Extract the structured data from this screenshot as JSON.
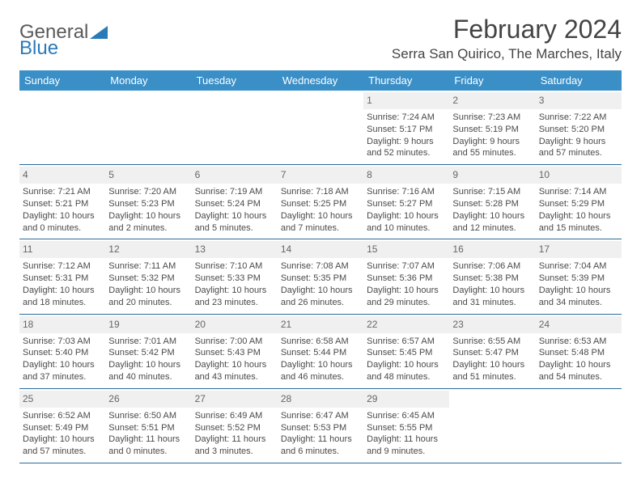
{
  "brand": {
    "part1": "General",
    "part2": "Blue"
  },
  "title": "February 2024",
  "location": "Serra San Quirico, The Marches, Italy",
  "colors": {
    "header_bg": "#3a8fc7",
    "header_text": "#ffffff",
    "rule": "#2a6a9a",
    "daynum_bg": "#f0f0f0",
    "text": "#4a4a4a",
    "brand_gray": "#5a5a5a",
    "brand_blue": "#2a7ab8",
    "page_bg": "#ffffff"
  },
  "dow": [
    "Sunday",
    "Monday",
    "Tuesday",
    "Wednesday",
    "Thursday",
    "Friday",
    "Saturday"
  ],
  "weeks": [
    [
      null,
      null,
      null,
      null,
      {
        "n": "1",
        "sr": "Sunrise: 7:24 AM",
        "ss": "Sunset: 5:17 PM",
        "d1": "Daylight: 9 hours",
        "d2": "and 52 minutes."
      },
      {
        "n": "2",
        "sr": "Sunrise: 7:23 AM",
        "ss": "Sunset: 5:19 PM",
        "d1": "Daylight: 9 hours",
        "d2": "and 55 minutes."
      },
      {
        "n": "3",
        "sr": "Sunrise: 7:22 AM",
        "ss": "Sunset: 5:20 PM",
        "d1": "Daylight: 9 hours",
        "d2": "and 57 minutes."
      }
    ],
    [
      {
        "n": "4",
        "sr": "Sunrise: 7:21 AM",
        "ss": "Sunset: 5:21 PM",
        "d1": "Daylight: 10 hours",
        "d2": "and 0 minutes."
      },
      {
        "n": "5",
        "sr": "Sunrise: 7:20 AM",
        "ss": "Sunset: 5:23 PM",
        "d1": "Daylight: 10 hours",
        "d2": "and 2 minutes."
      },
      {
        "n": "6",
        "sr": "Sunrise: 7:19 AM",
        "ss": "Sunset: 5:24 PM",
        "d1": "Daylight: 10 hours",
        "d2": "and 5 minutes."
      },
      {
        "n": "7",
        "sr": "Sunrise: 7:18 AM",
        "ss": "Sunset: 5:25 PM",
        "d1": "Daylight: 10 hours",
        "d2": "and 7 minutes."
      },
      {
        "n": "8",
        "sr": "Sunrise: 7:16 AM",
        "ss": "Sunset: 5:27 PM",
        "d1": "Daylight: 10 hours",
        "d2": "and 10 minutes."
      },
      {
        "n": "9",
        "sr": "Sunrise: 7:15 AM",
        "ss": "Sunset: 5:28 PM",
        "d1": "Daylight: 10 hours",
        "d2": "and 12 minutes."
      },
      {
        "n": "10",
        "sr": "Sunrise: 7:14 AM",
        "ss": "Sunset: 5:29 PM",
        "d1": "Daylight: 10 hours",
        "d2": "and 15 minutes."
      }
    ],
    [
      {
        "n": "11",
        "sr": "Sunrise: 7:12 AM",
        "ss": "Sunset: 5:31 PM",
        "d1": "Daylight: 10 hours",
        "d2": "and 18 minutes."
      },
      {
        "n": "12",
        "sr": "Sunrise: 7:11 AM",
        "ss": "Sunset: 5:32 PM",
        "d1": "Daylight: 10 hours",
        "d2": "and 20 minutes."
      },
      {
        "n": "13",
        "sr": "Sunrise: 7:10 AM",
        "ss": "Sunset: 5:33 PM",
        "d1": "Daylight: 10 hours",
        "d2": "and 23 minutes."
      },
      {
        "n": "14",
        "sr": "Sunrise: 7:08 AM",
        "ss": "Sunset: 5:35 PM",
        "d1": "Daylight: 10 hours",
        "d2": "and 26 minutes."
      },
      {
        "n": "15",
        "sr": "Sunrise: 7:07 AM",
        "ss": "Sunset: 5:36 PM",
        "d1": "Daylight: 10 hours",
        "d2": "and 29 minutes."
      },
      {
        "n": "16",
        "sr": "Sunrise: 7:06 AM",
        "ss": "Sunset: 5:38 PM",
        "d1": "Daylight: 10 hours",
        "d2": "and 31 minutes."
      },
      {
        "n": "17",
        "sr": "Sunrise: 7:04 AM",
        "ss": "Sunset: 5:39 PM",
        "d1": "Daylight: 10 hours",
        "d2": "and 34 minutes."
      }
    ],
    [
      {
        "n": "18",
        "sr": "Sunrise: 7:03 AM",
        "ss": "Sunset: 5:40 PM",
        "d1": "Daylight: 10 hours",
        "d2": "and 37 minutes."
      },
      {
        "n": "19",
        "sr": "Sunrise: 7:01 AM",
        "ss": "Sunset: 5:42 PM",
        "d1": "Daylight: 10 hours",
        "d2": "and 40 minutes."
      },
      {
        "n": "20",
        "sr": "Sunrise: 7:00 AM",
        "ss": "Sunset: 5:43 PM",
        "d1": "Daylight: 10 hours",
        "d2": "and 43 minutes."
      },
      {
        "n": "21",
        "sr": "Sunrise: 6:58 AM",
        "ss": "Sunset: 5:44 PM",
        "d1": "Daylight: 10 hours",
        "d2": "and 46 minutes."
      },
      {
        "n": "22",
        "sr": "Sunrise: 6:57 AM",
        "ss": "Sunset: 5:45 PM",
        "d1": "Daylight: 10 hours",
        "d2": "and 48 minutes."
      },
      {
        "n": "23",
        "sr": "Sunrise: 6:55 AM",
        "ss": "Sunset: 5:47 PM",
        "d1": "Daylight: 10 hours",
        "d2": "and 51 minutes."
      },
      {
        "n": "24",
        "sr": "Sunrise: 6:53 AM",
        "ss": "Sunset: 5:48 PM",
        "d1": "Daylight: 10 hours",
        "d2": "and 54 minutes."
      }
    ],
    [
      {
        "n": "25",
        "sr": "Sunrise: 6:52 AM",
        "ss": "Sunset: 5:49 PM",
        "d1": "Daylight: 10 hours",
        "d2": "and 57 minutes."
      },
      {
        "n": "26",
        "sr": "Sunrise: 6:50 AM",
        "ss": "Sunset: 5:51 PM",
        "d1": "Daylight: 11 hours",
        "d2": "and 0 minutes."
      },
      {
        "n": "27",
        "sr": "Sunrise: 6:49 AM",
        "ss": "Sunset: 5:52 PM",
        "d1": "Daylight: 11 hours",
        "d2": "and 3 minutes."
      },
      {
        "n": "28",
        "sr": "Sunrise: 6:47 AM",
        "ss": "Sunset: 5:53 PM",
        "d1": "Daylight: 11 hours",
        "d2": "and 6 minutes."
      },
      {
        "n": "29",
        "sr": "Sunrise: 6:45 AM",
        "ss": "Sunset: 5:55 PM",
        "d1": "Daylight: 11 hours",
        "d2": "and 9 minutes."
      },
      null,
      null
    ]
  ]
}
